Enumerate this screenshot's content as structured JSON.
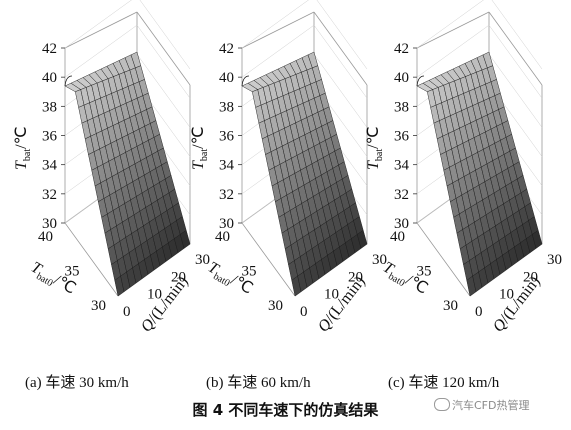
{
  "chart_data": [
    {
      "type": "surface",
      "panel_label": "(a)  车速 30 km/h",
      "z_label_main": "T",
      "z_label_sub": "bat",
      "z_unit": "/℃",
      "y_label_main": "T",
      "y_label_sub": "bat0",
      "y_unit": "/℃",
      "x_label_main": "Q",
      "x_unit": "/(L/min)",
      "x_ticks": [
        "0",
        "10",
        "20",
        "30"
      ],
      "y_ticks": [
        "30",
        "35",
        "40"
      ],
      "z_ticks": [
        "30",
        "32",
        "34",
        "36",
        "38",
        "40",
        "42"
      ],
      "xlim": [
        0,
        30
      ],
      "ylim": [
        30,
        40
      ],
      "zlim": [
        30,
        42
      ],
      "grid": true
    },
    {
      "type": "surface",
      "panel_label": "(b)  车速 60 km/h",
      "z_label_main": "T",
      "z_label_sub": "bat",
      "z_unit": "/℃",
      "y_label_main": "T",
      "y_label_sub": "bat0",
      "y_unit": "/℃",
      "x_label_main": "Q",
      "x_unit": "/(L/min)",
      "x_ticks": [
        "0",
        "10",
        "20",
        "30"
      ],
      "y_ticks": [
        "30",
        "35",
        "40"
      ],
      "z_ticks": [
        "30",
        "32",
        "34",
        "36",
        "38",
        "40",
        "42"
      ],
      "xlim": [
        0,
        30
      ],
      "ylim": [
        30,
        40
      ],
      "zlim": [
        30,
        42
      ],
      "grid": true
    },
    {
      "type": "surface",
      "panel_label": "(c)  车速 120 km/h",
      "z_label_main": "T",
      "z_label_sub": "bat",
      "z_unit": "/℃",
      "y_label_main": "T",
      "y_label_sub": "bat0",
      "y_unit": "/℃",
      "x_label_main": "Q",
      "x_unit": "/(L/min)",
      "x_ticks": [
        "0",
        "10",
        "20",
        "30"
      ],
      "y_ticks": [
        "30",
        "35",
        "40"
      ],
      "z_ticks": [
        "30",
        "32",
        "34",
        "36",
        "38",
        "40",
        "42"
      ],
      "xlim": [
        0,
        30
      ],
      "ylim": [
        30,
        40
      ],
      "zlim": [
        30,
        42
      ],
      "grid": true
    }
  ],
  "figure_caption": "图 4    不同车速下的仿真结果",
  "watermark": "汽车CFD热管理"
}
